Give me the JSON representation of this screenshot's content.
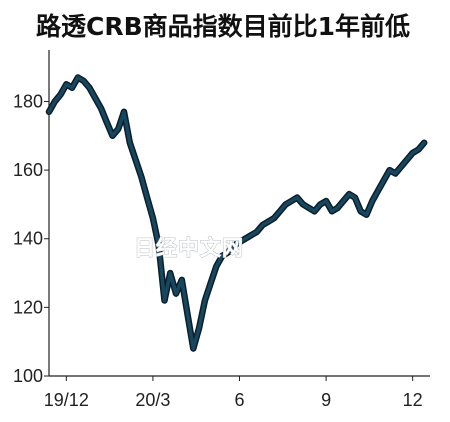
{
  "chart_data": {
    "type": "line",
    "title": "路透CRB商品指数目前比1年前低",
    "xlabel": "",
    "ylabel": "",
    "xlim": [
      0,
      13.2
    ],
    "ylim": [
      100,
      195
    ],
    "y_ticks": [
      {
        "value": 100,
        "label": "100"
      },
      {
        "value": 120,
        "label": "120"
      },
      {
        "value": 140,
        "label": "140"
      },
      {
        "value": 160,
        "label": "160"
      },
      {
        "value": 180,
        "label": "180"
      }
    ],
    "x_ticks": [
      {
        "value": 0.6,
        "label": "19/12"
      },
      {
        "value": 3.6,
        "label": "20/3"
      },
      {
        "value": 6.6,
        "label": "6"
      },
      {
        "value": 9.6,
        "label": "9"
      },
      {
        "value": 12.6,
        "label": "12"
      }
    ],
    "grid": false,
    "series": [
      {
        "color": "#17475f",
        "x": [
          0.0,
          0.2,
          0.4,
          0.6,
          0.8,
          1.0,
          1.2,
          1.4,
          1.6,
          1.8,
          2.0,
          2.2,
          2.4,
          2.6,
          2.8,
          3.0,
          3.2,
          3.4,
          3.6,
          3.8,
          4.0,
          4.2,
          4.4,
          4.6,
          4.8,
          5.0,
          5.2,
          5.4,
          5.6,
          5.8,
          6.0,
          6.2,
          6.4,
          6.6,
          6.8,
          7.0,
          7.2,
          7.4,
          7.6,
          7.8,
          8.0,
          8.2,
          8.4,
          8.6,
          8.8,
          9.0,
          9.2,
          9.4,
          9.6,
          9.8,
          10.0,
          10.2,
          10.4,
          10.6,
          10.8,
          11.0,
          11.2,
          11.4,
          11.6,
          11.8,
          12.0,
          12.2,
          12.4,
          12.6,
          12.8,
          13.0
        ],
        "y": [
          177,
          180,
          182,
          185,
          184,
          187,
          186,
          184,
          181,
          178,
          174,
          170,
          172,
          177,
          168,
          163,
          158,
          152,
          146,
          138,
          122,
          130,
          124,
          128,
          118,
          108,
          114,
          122,
          127,
          132,
          135,
          136,
          138,
          139,
          140,
          141,
          142,
          144,
          145,
          146,
          148,
          150,
          151,
          152,
          150,
          149,
          148,
          150,
          151,
          148,
          149,
          151,
          153,
          152,
          148,
          147,
          151,
          154,
          157,
          160,
          159,
          161,
          163,
          165,
          166,
          168
        ]
      }
    ]
  },
  "watermark": "日经中文网"
}
